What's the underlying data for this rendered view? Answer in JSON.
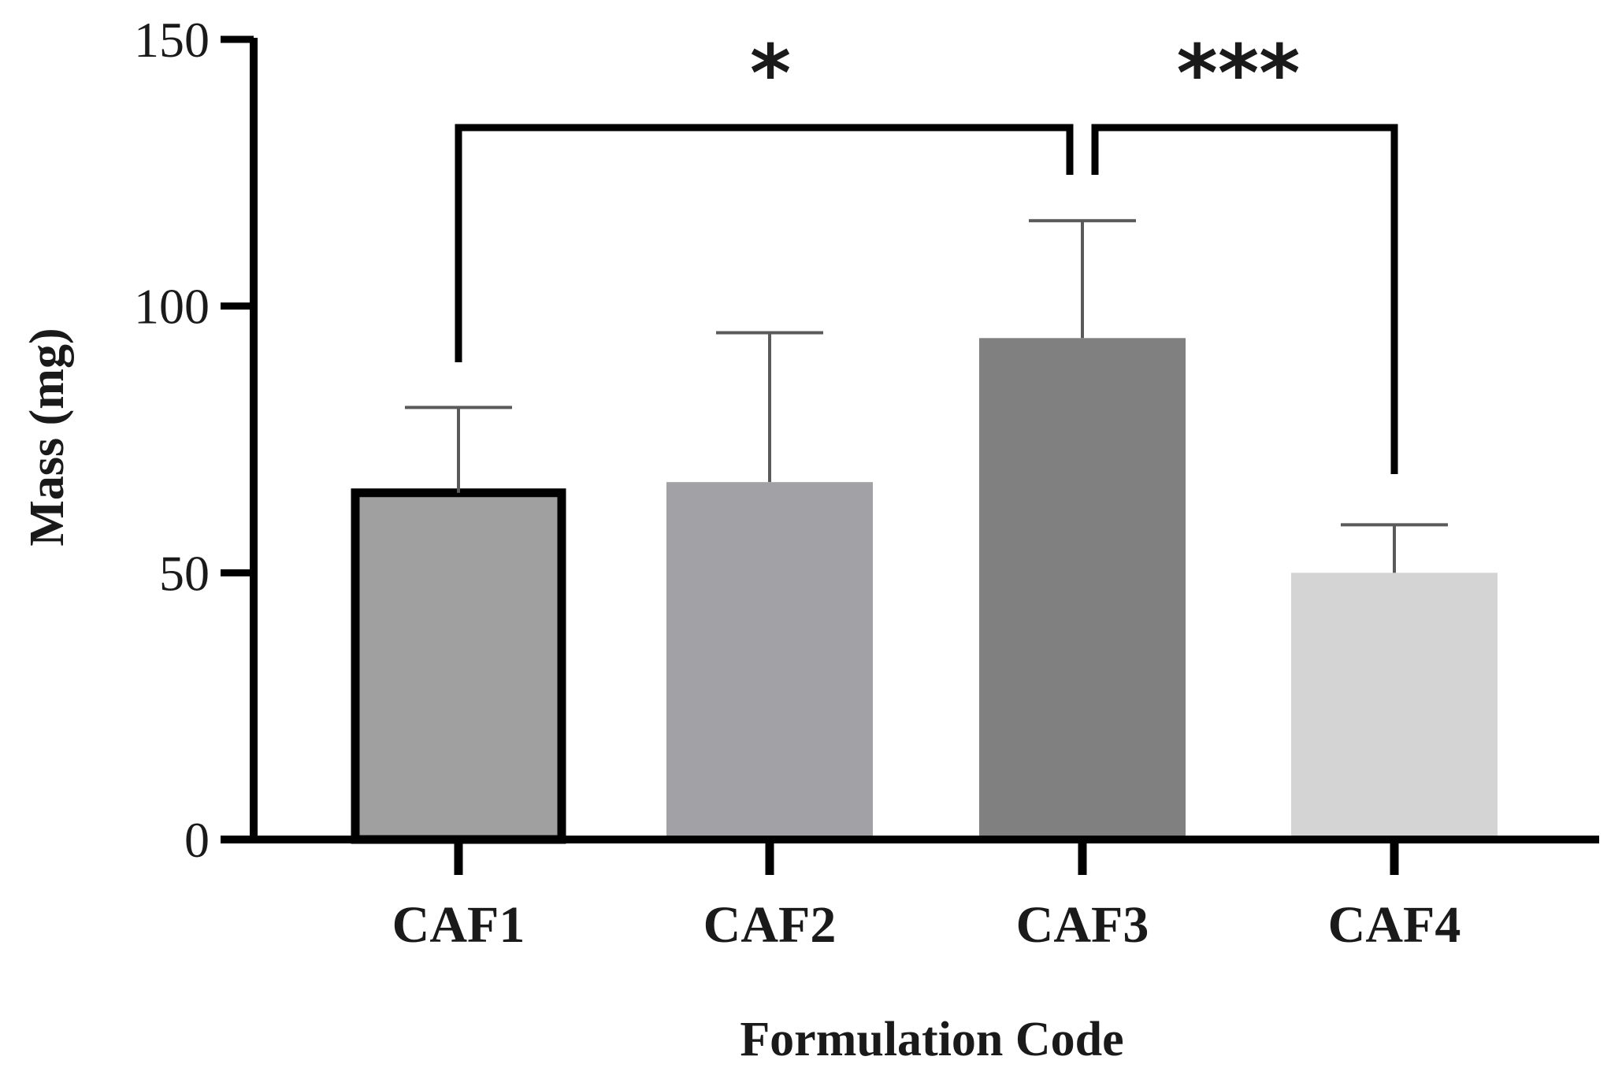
{
  "chart_data": {
    "type": "bar",
    "title": "",
    "xlabel": "Formulation Code",
    "ylabel": "Mass (mg)",
    "ylim": [
      0,
      150
    ],
    "yticks": [
      0,
      50,
      100,
      150
    ],
    "categories": [
      "CAF1",
      "CAF2",
      "CAF3",
      "CAF4"
    ],
    "values": [
      65,
      67,
      94,
      50
    ],
    "error_upper": [
      81,
      95,
      116,
      59
    ],
    "bar_colors": [
      "#a0a0a0",
      "#a2a2a6",
      "#808080",
      "#d4d4d4"
    ],
    "highlighted_bar": "CAF1",
    "grid": false,
    "legend": "none",
    "significance": [
      {
        "from": "CAF1",
        "to": "CAF3",
        "label": "*"
      },
      {
        "from": "CAF3",
        "to": "CAF4",
        "label": "***"
      }
    ]
  }
}
